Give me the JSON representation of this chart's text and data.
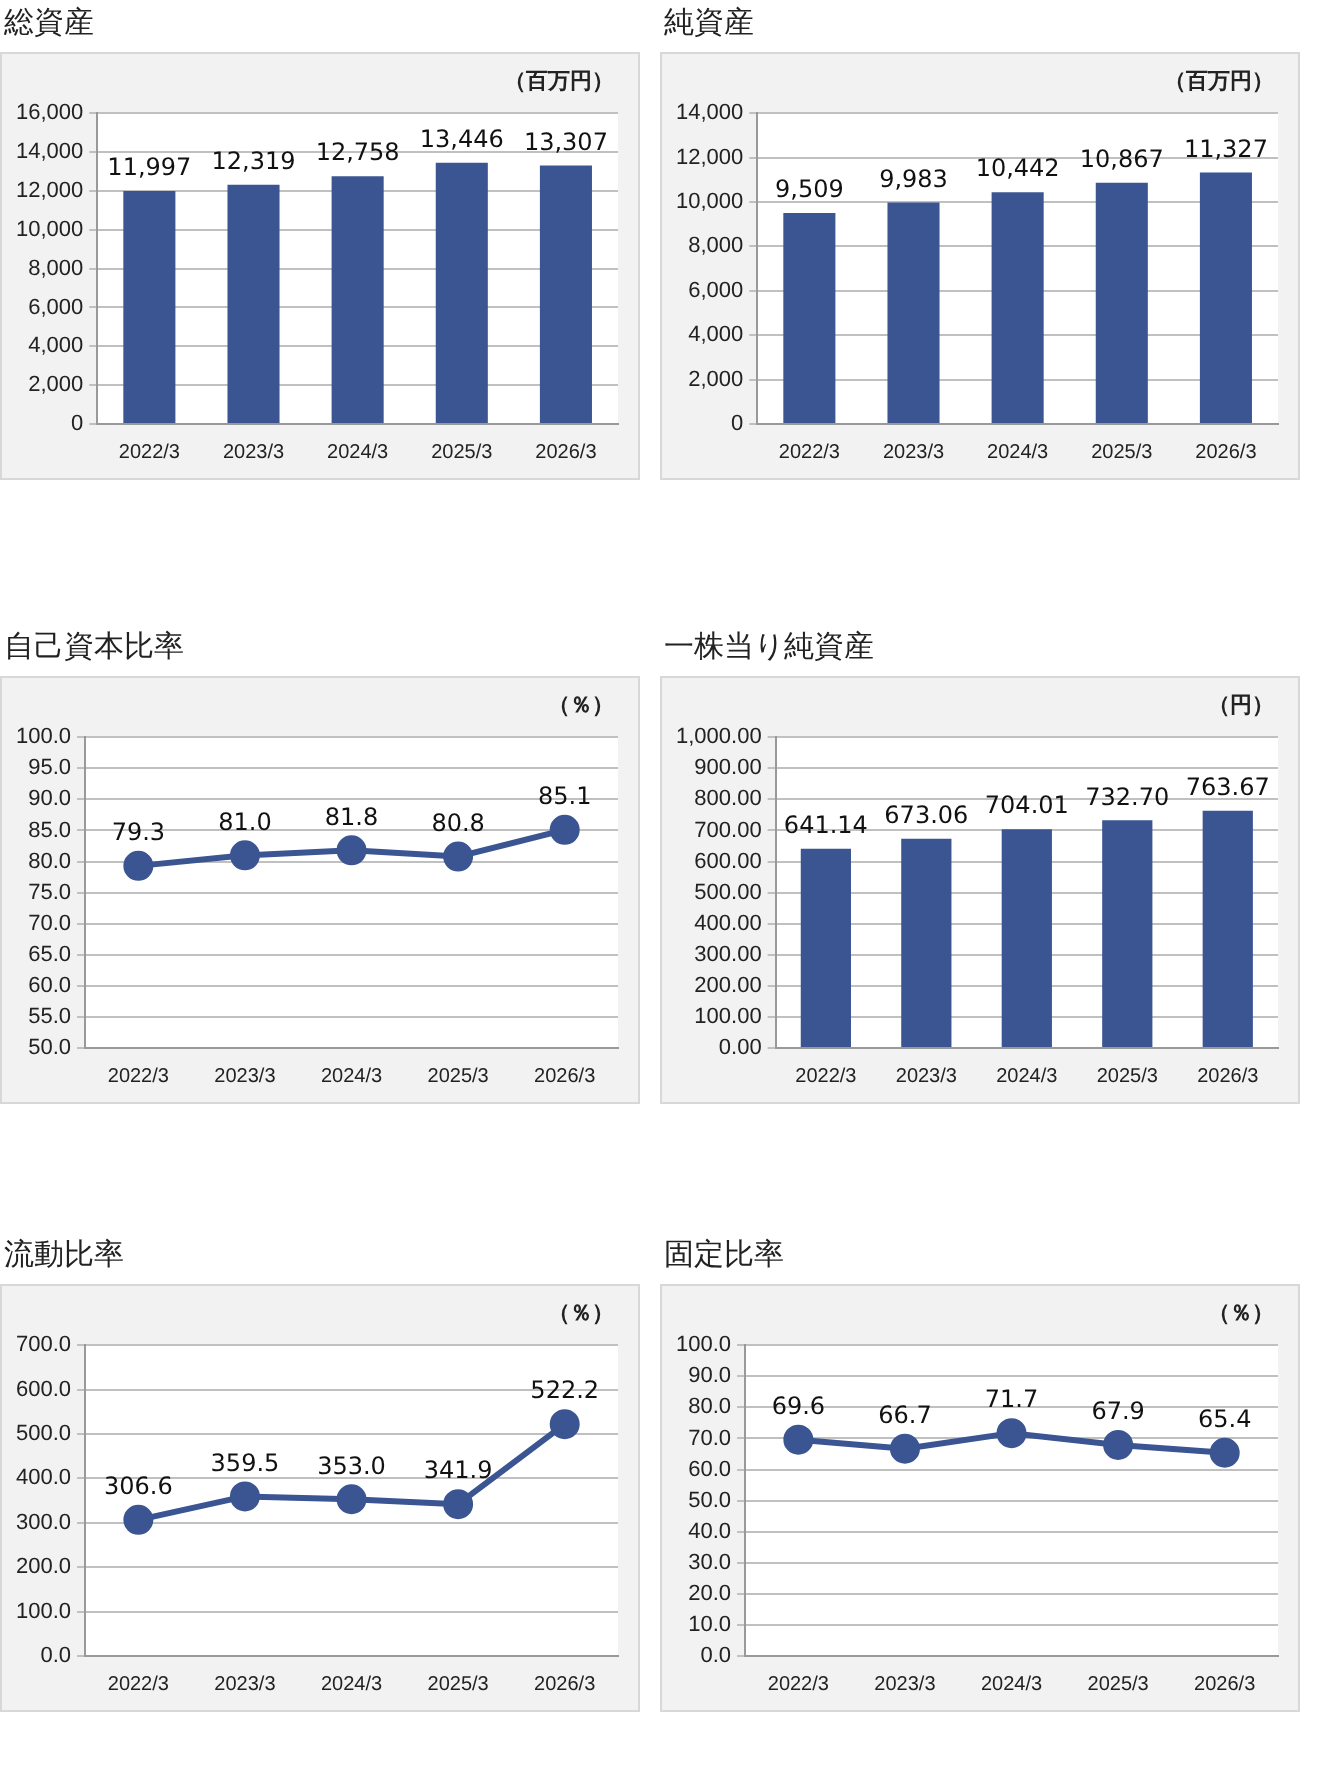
{
  "chart_data": [
    {
      "type": "bar",
      "title": "総資産",
      "annotations": [
        "（百万円）"
      ],
      "categories": [
        "2022/3",
        "2023/3",
        "2024/3",
        "2025/3",
        "2026/3"
      ],
      "values": [
        11997,
        12319,
        12758,
        13446,
        13307
      ],
      "color": "#3b5592",
      "value_labels": [
        "11,997",
        "12,319",
        "12,758",
        "13,446",
        "13,307"
      ],
      "grid": "y",
      "ylim": [
        0,
        16000
      ],
      "yticks": [
        {
          "value": 0,
          "label": "0"
        },
        {
          "value": 2000,
          "label": "2,000"
        },
        {
          "value": 4000,
          "label": "4,000"
        },
        {
          "value": 6000,
          "label": "6,000"
        },
        {
          "value": 8000,
          "label": "8,000"
        },
        {
          "value": 10000,
          "label": "10,000"
        },
        {
          "value": 12000,
          "label": "12,000"
        },
        {
          "value": 14000,
          "label": "14,000"
        },
        {
          "value": 16000,
          "label": "16,000"
        }
      ]
    },
    {
      "type": "bar",
      "title": "純資産",
      "annotations": [
        "（百万円）"
      ],
      "categories": [
        "2022/3",
        "2023/3",
        "2024/3",
        "2025/3",
        "2026/3"
      ],
      "values": [
        9509,
        9983,
        10442,
        10867,
        11327
      ],
      "color": "#3b5592",
      "value_labels": [
        "9,509",
        "9,983",
        "10,442",
        "10,867",
        "11,327"
      ],
      "grid": "y",
      "ylim": [
        0,
        14000
      ],
      "yticks": [
        {
          "value": 0,
          "label": "0"
        },
        {
          "value": 2000,
          "label": "2,000"
        },
        {
          "value": 4000,
          "label": "4,000"
        },
        {
          "value": 6000,
          "label": "6,000"
        },
        {
          "value": 8000,
          "label": "8,000"
        },
        {
          "value": 10000,
          "label": "10,000"
        },
        {
          "value": 12000,
          "label": "12,000"
        },
        {
          "value": 14000,
          "label": "14,000"
        }
      ]
    },
    {
      "type": "line",
      "title": "自己資本比率",
      "annotations": [
        "（％）"
      ],
      "categories": [
        "2022/3",
        "2023/3",
        "2024/3",
        "2025/3",
        "2026/3"
      ],
      "values": [
        79.3,
        81.0,
        81.8,
        80.8,
        85.1
      ],
      "color": "#3b5592",
      "marker": "circle",
      "value_labels": [
        "79.3",
        "81.0",
        "81.8",
        "80.8",
        "85.1"
      ],
      "grid": "y",
      "ylim": [
        50,
        100
      ],
      "yticks": [
        {
          "value": 50,
          "label": "50.0"
        },
        {
          "value": 55,
          "label": "55.0"
        },
        {
          "value": 60,
          "label": "60.0"
        },
        {
          "value": 65,
          "label": "65.0"
        },
        {
          "value": 70,
          "label": "70.0"
        },
        {
          "value": 75,
          "label": "75.0"
        },
        {
          "value": 80,
          "label": "80.0"
        },
        {
          "value": 85,
          "label": "85.0"
        },
        {
          "value": 90,
          "label": "90.0"
        },
        {
          "value": 95,
          "label": "95.0"
        },
        {
          "value": 100,
          "label": "100.0"
        }
      ]
    },
    {
      "type": "bar",
      "title": "一株当り純資産",
      "annotations": [
        "（円）"
      ],
      "categories": [
        "2022/3",
        "2023/3",
        "2024/3",
        "2025/3",
        "2026/3"
      ],
      "values": [
        641.14,
        673.06,
        704.01,
        732.7,
        763.67
      ],
      "color": "#3b5592",
      "value_labels": [
        "641.14",
        "673.06",
        "704.01",
        "732.70",
        "763.67"
      ],
      "grid": "y",
      "ylim": [
        0,
        1000
      ],
      "yticks": [
        {
          "value": 0,
          "label": "0.00"
        },
        {
          "value": 100,
          "label": "100.00"
        },
        {
          "value": 200,
          "label": "200.00"
        },
        {
          "value": 300,
          "label": "300.00"
        },
        {
          "value": 400,
          "label": "400.00"
        },
        {
          "value": 500,
          "label": "500.00"
        },
        {
          "value": 600,
          "label": "600.00"
        },
        {
          "value": 700,
          "label": "700.00"
        },
        {
          "value": 800,
          "label": "800.00"
        },
        {
          "value": 900,
          "label": "900.00"
        },
        {
          "value": 1000,
          "label": "1,000.00"
        }
      ]
    },
    {
      "type": "line",
      "title": "流動比率",
      "annotations": [
        "（％）"
      ],
      "categories": [
        "2022/3",
        "2023/3",
        "2024/3",
        "2025/3",
        "2026/3"
      ],
      "values": [
        306.6,
        359.5,
        353.0,
        341.9,
        522.2
      ],
      "color": "#3b5592",
      "marker": "circle",
      "value_labels": [
        "306.6",
        "359.5",
        "353.0",
        "341.9",
        "522.2"
      ],
      "grid": "y",
      "ylim": [
        0,
        700
      ],
      "yticks": [
        {
          "value": 0,
          "label": "0.0"
        },
        {
          "value": 100,
          "label": "100.0"
        },
        {
          "value": 200,
          "label": "200.0"
        },
        {
          "value": 300,
          "label": "300.0"
        },
        {
          "value": 400,
          "label": "400.0"
        },
        {
          "value": 500,
          "label": "500.0"
        },
        {
          "value": 600,
          "label": "600.0"
        },
        {
          "value": 700,
          "label": "700.0"
        }
      ]
    },
    {
      "type": "line",
      "title": "固定比率",
      "annotations": [
        "（％）"
      ],
      "categories": [
        "2022/3",
        "2023/3",
        "2024/3",
        "2025/3",
        "2026/3"
      ],
      "values": [
        69.6,
        66.7,
        71.7,
        67.9,
        65.4
      ],
      "color": "#3b5592",
      "marker": "circle",
      "value_labels": [
        "69.6",
        "66.7",
        "71.7",
        "67.9",
        "65.4"
      ],
      "grid": "y",
      "ylim": [
        0,
        100
      ],
      "yticks": [
        {
          "value": 0,
          "label": "0.0"
        },
        {
          "value": 10,
          "label": "10.0"
        },
        {
          "value": 20,
          "label": "20.0"
        },
        {
          "value": 30,
          "label": "30.0"
        },
        {
          "value": 40,
          "label": "40.0"
        },
        {
          "value": 50,
          "label": "50.0"
        },
        {
          "value": 60,
          "label": "60.0"
        },
        {
          "value": 70,
          "label": "70.0"
        },
        {
          "value": 80,
          "label": "80.0"
        },
        {
          "value": 90,
          "label": "90.0"
        },
        {
          "value": 100,
          "label": "100.0"
        }
      ]
    }
  ]
}
